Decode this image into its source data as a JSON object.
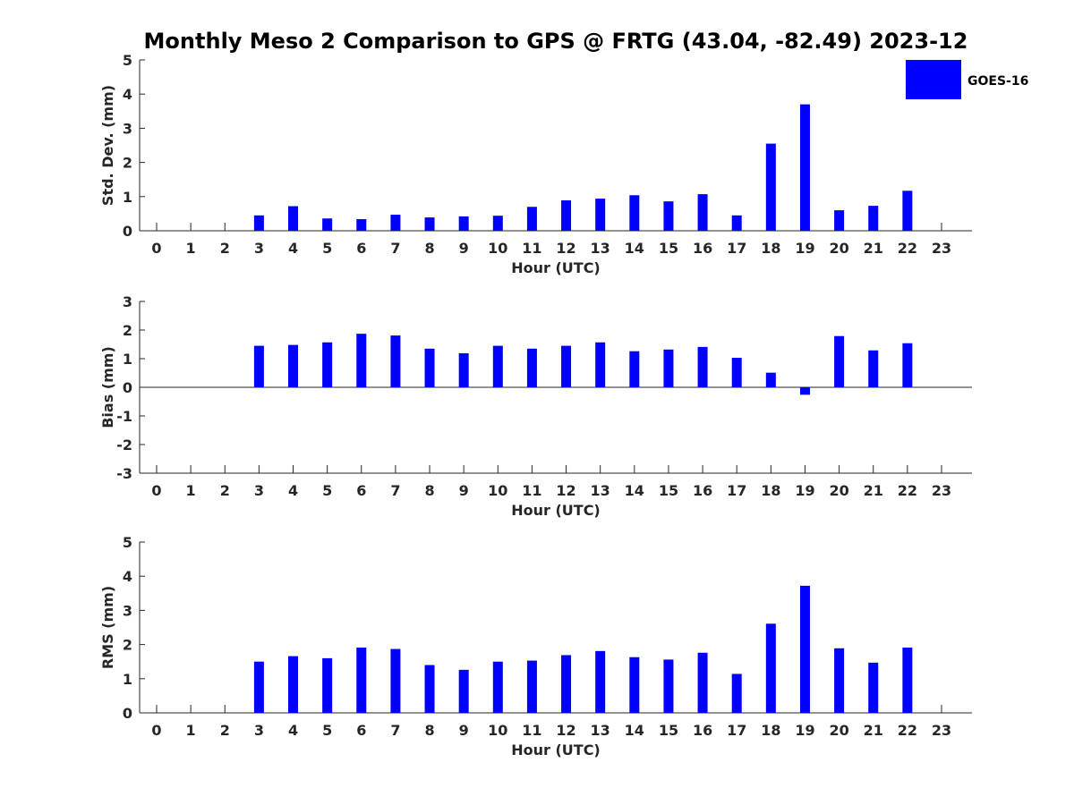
{
  "title": "Monthly Meso 2 Comparison to GPS @ FRTG (43.04, -82.49) 2023-12",
  "legend": {
    "label": "GOES-16",
    "color": "#0000ff",
    "placement": "top-right"
  },
  "chart_data": [
    {
      "type": "bar",
      "ylabel": "Std. Dev. (mm)",
      "xlabel": "Hour (UTC)",
      "ylim": [
        0,
        5
      ],
      "yticks": [
        "0",
        "1",
        "2",
        "3",
        "4",
        "5"
      ],
      "categories": [
        "0",
        "1",
        "2",
        "3",
        "4",
        "5",
        "6",
        "7",
        "8",
        "9",
        "10",
        "11",
        "12",
        "13",
        "14",
        "15",
        "16",
        "17",
        "18",
        "19",
        "20",
        "21",
        "22",
        "23"
      ],
      "series": [
        {
          "name": "GOES-16",
          "values": [
            null,
            null,
            null,
            0.45,
            0.72,
            0.36,
            0.34,
            0.47,
            0.39,
            0.42,
            0.44,
            0.7,
            0.89,
            0.94,
            1.04,
            0.86,
            1.07,
            0.45,
            2.55,
            3.7,
            0.6,
            0.73,
            1.17,
            null
          ]
        }
      ],
      "grid": false
    },
    {
      "type": "bar",
      "ylabel": "Bias (mm)",
      "xlabel": "Hour (UTC)",
      "ylim": [
        -3,
        3
      ],
      "yticks": [
        "-3",
        "-2",
        "-1",
        "0",
        "1",
        "2",
        "3"
      ],
      "categories": [
        "0",
        "1",
        "2",
        "3",
        "4",
        "5",
        "6",
        "7",
        "8",
        "9",
        "10",
        "11",
        "12",
        "13",
        "14",
        "15",
        "16",
        "17",
        "18",
        "19",
        "20",
        "21",
        "22",
        "23"
      ],
      "series": [
        {
          "name": "GOES-16",
          "values": [
            null,
            null,
            null,
            1.45,
            1.48,
            1.57,
            1.87,
            1.81,
            1.35,
            1.19,
            1.45,
            1.35,
            1.45,
            1.57,
            1.26,
            1.32,
            1.41,
            1.03,
            0.51,
            -0.26,
            1.79,
            1.29,
            1.54,
            null
          ]
        }
      ],
      "grid": false
    },
    {
      "type": "bar",
      "ylabel": "RMS (mm)",
      "xlabel": "Hour (UTC)",
      "ylim": [
        0,
        5
      ],
      "yticks": [
        "0",
        "1",
        "2",
        "3",
        "4",
        "5"
      ],
      "categories": [
        "0",
        "1",
        "2",
        "3",
        "4",
        "5",
        "6",
        "7",
        "8",
        "9",
        "10",
        "11",
        "12",
        "13",
        "14",
        "15",
        "16",
        "17",
        "18",
        "19",
        "20",
        "21",
        "22",
        "23"
      ],
      "series": [
        {
          "name": "GOES-16",
          "values": [
            null,
            null,
            null,
            1.5,
            1.66,
            1.6,
            1.91,
            1.87,
            1.4,
            1.26,
            1.5,
            1.53,
            1.69,
            1.81,
            1.63,
            1.56,
            1.76,
            1.14,
            2.61,
            3.72,
            1.89,
            1.47,
            1.91,
            null
          ]
        }
      ],
      "grid": false
    }
  ]
}
